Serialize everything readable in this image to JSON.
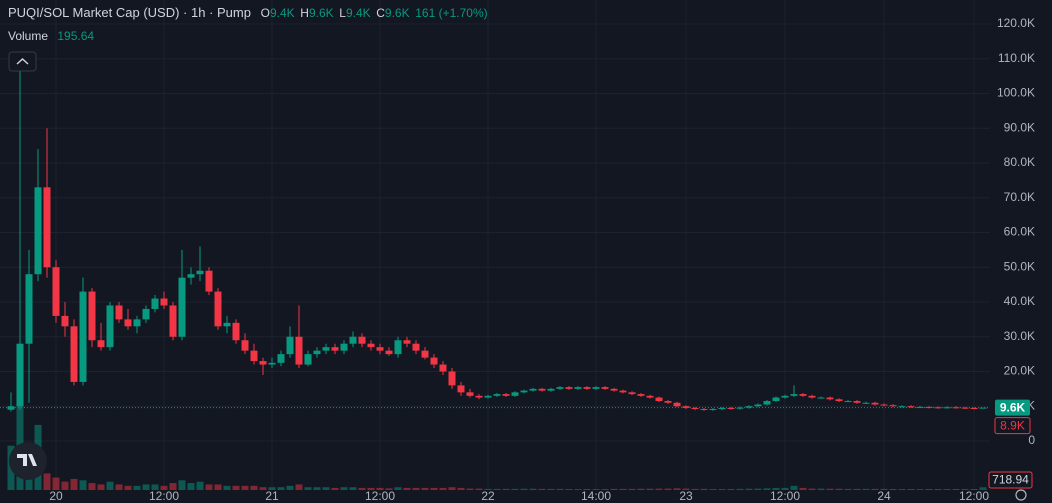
{
  "header": {
    "title": "PUQI/SOL Market Cap (USD) · 1h · Pump",
    "ohlc": [
      {
        "key": "O",
        "value": "9.4K"
      },
      {
        "key": "H",
        "value": "9.6K"
      },
      {
        "key": "L",
        "value": "9.4K"
      },
      {
        "key": "C",
        "value": "9.6K"
      }
    ],
    "change": "161 (+1.70%)",
    "volume_name": "Volume",
    "volume_value": "195.64"
  },
  "chart_data": {
    "type": "candlestick",
    "up_color": "#089981",
    "down_color": "#f23645",
    "grid": true,
    "categories": [
      null,
      null,
      null,
      null,
      null,
      "20",
      null,
      null,
      null,
      null,
      null,
      null,
      null,
      null,
      null,
      null,
      null,
      "12:00",
      null,
      null,
      null,
      null,
      null,
      null,
      null,
      null,
      null,
      null,
      null,
      "21",
      null,
      null,
      null,
      null,
      null,
      null,
      null,
      null,
      null,
      null,
      null,
      "12:00",
      null,
      null,
      null,
      null,
      null,
      null,
      null,
      null,
      null,
      null,
      null,
      "22",
      null,
      null,
      null,
      null,
      null,
      null,
      null,
      null,
      null,
      null,
      null,
      "14:00",
      null,
      null,
      null,
      null,
      null,
      null,
      null,
      null,
      null,
      "23",
      null,
      null,
      null,
      null,
      null,
      null,
      null,
      null,
      null,
      null,
      "12:00",
      null,
      null,
      null,
      null,
      null,
      null,
      null,
      null,
      null,
      null,
      "24",
      null,
      null,
      null,
      null,
      null,
      null,
      null,
      null,
      null,
      "12:00",
      null
    ],
    "open": [
      9000,
      10000,
      28000,
      48000,
      73000,
      50000,
      36000,
      33000,
      17000,
      43000,
      29000,
      27000,
      39000,
      35000,
      33000,
      35000,
      38000,
      41000,
      39000,
      30000,
      47000,
      48000,
      49000,
      43000,
      33000,
      34000,
      29000,
      26000,
      23000,
      22000,
      22500,
      25000,
      30000,
      22000,
      25000,
      26000,
      27000,
      26000,
      28000,
      30000,
      28000,
      27000,
      26000,
      25000,
      29000,
      28000,
      26000,
      24000,
      22000,
      20000,
      16000,
      14000,
      13000,
      12500,
      13000,
      13500,
      13000,
      14000,
      14500,
      15000,
      14500,
      15000,
      15500,
      15000,
      15500,
      15000,
      15500,
      15000,
      14500,
      14000,
      13500,
      13000,
      12500,
      11500,
      11000,
      10000,
      9500,
      9200,
      9000,
      9200,
      9500,
      9300,
      9600,
      10000,
      10500,
      11500,
      12500,
      13000,
      13500,
      13000,
      12500,
      12500,
      12000,
      11500,
      11500,
      11000,
      11000,
      10500,
      10300,
      10000,
      10000,
      9800,
      9800,
      9700,
      9600,
      9700,
      9600,
      9500,
      9400
    ],
    "high": [
      14000,
      107000,
      55000,
      84000,
      90000,
      52000,
      40000,
      35000,
      47000,
      44000,
      34000,
      40000,
      40000,
      38000,
      36000,
      39000,
      42000,
      43000,
      40000,
      55000,
      50000,
      56000,
      50000,
      44000,
      36000,
      35000,
      31000,
      28000,
      24000,
      24000,
      26000,
      33000,
      39000,
      26000,
      27000,
      28000,
      28000,
      29000,
      31500,
      31000,
      29000,
      28000,
      27000,
      30000,
      30000,
      29000,
      27000,
      25000,
      23000,
      21000,
      17000,
      15000,
      13500,
      13300,
      13800,
      13800,
      14300,
      14800,
      15300,
      15300,
      15300,
      15800,
      15800,
      15800,
      15800,
      15800,
      15800,
      15300,
      14800,
      14300,
      13800,
      13300,
      12800,
      11800,
      11300,
      10300,
      9800,
      9500,
      9500,
      9800,
      9800,
      9900,
      10300,
      10800,
      11800,
      12800,
      13300,
      16000,
      13800,
      13300,
      12800,
      12800,
      12300,
      11800,
      11800,
      11300,
      11300,
      10800,
      10600,
      10300,
      10300,
      10100,
      10000,
      9900,
      10000,
      10000,
      9800,
      9700,
      9600
    ],
    "low": [
      8500,
      9000,
      11000,
      46000,
      47000,
      34000,
      30000,
      16000,
      16000,
      27000,
      26000,
      26000,
      34000,
      32000,
      31000,
      34000,
      37000,
      38000,
      29000,
      29000,
      45000,
      46000,
      42000,
      32000,
      31000,
      28000,
      25000,
      22000,
      19000,
      21000,
      21500,
      24000,
      21000,
      21500,
      24000,
      25000,
      25000,
      25000,
      27000,
      27000,
      26000,
      25000,
      24500,
      24000,
      27000,
      25000,
      23500,
      21000,
      19000,
      15000,
      13000,
      12500,
      12000,
      12200,
      12700,
      12700,
      12700,
      13700,
      14200,
      14200,
      14200,
      14700,
      14700,
      14700,
      14700,
      14700,
      14700,
      14200,
      13700,
      13200,
      12700,
      12200,
      11200,
      10700,
      9700,
      9200,
      8900,
      8700,
      8700,
      8900,
      9000,
      9000,
      9300,
      9700,
      10200,
      11200,
      12200,
      12700,
      12700,
      12200,
      12200,
      11700,
      11200,
      11200,
      10700,
      10700,
      10200,
      10000,
      9700,
      9700,
      9500,
      9500,
      9400,
      9300,
      9300,
      9300,
      9200,
      9100,
      9400
    ],
    "close": [
      10000,
      28000,
      48000,
      73000,
      50000,
      36000,
      33000,
      17000,
      43000,
      29000,
      27000,
      39000,
      35000,
      33000,
      35000,
      38000,
      41000,
      39000,
      30000,
      47000,
      48000,
      49000,
      43000,
      33000,
      34000,
      29000,
      26000,
      23000,
      22000,
      22500,
      25000,
      30000,
      22000,
      25000,
      26000,
      27000,
      26000,
      28000,
      30000,
      28000,
      27000,
      26000,
      25000,
      29000,
      28000,
      26000,
      24000,
      22000,
      20000,
      16000,
      14000,
      13000,
      12500,
      13000,
      13500,
      13000,
      14000,
      14500,
      15000,
      14500,
      15000,
      15500,
      15000,
      15500,
      15000,
      15500,
      15000,
      14500,
      14000,
      13500,
      13000,
      12500,
      11500,
      11000,
      10000,
      9500,
      9200,
      9000,
      9200,
      9500,
      9300,
      9600,
      10000,
      10500,
      11500,
      12500,
      13000,
      13500,
      13000,
      12500,
      12500,
      12000,
      11500,
      11500,
      11000,
      11000,
      10500,
      10300,
      10000,
      10000,
      9800,
      9800,
      9700,
      9600,
      9700,
      9600,
      9500,
      9400,
      9600
    ],
    "volume": [
      3200,
      6500,
      2000,
      4700,
      1200,
      900,
      600,
      800,
      700,
      500,
      400,
      600,
      400,
      300,
      300,
      400,
      400,
      300,
      500,
      700,
      500,
      600,
      400,
      400,
      300,
      300,
      300,
      300,
      200,
      200,
      200,
      300,
      400,
      200,
      200,
      200,
      150,
      200,
      200,
      150,
      150,
      150,
      120,
      200,
      150,
      150,
      150,
      150,
      150,
      200,
      150,
      100,
      100,
      80,
      80,
      80,
      80,
      90,
      90,
      80,
      80,
      80,
      70,
      70,
      70,
      70,
      70,
      80,
      80,
      80,
      90,
      90,
      100,
      100,
      120,
      100,
      80,
      80,
      70,
      70,
      70,
      80,
      90,
      100,
      120,
      150,
      150,
      300,
      150,
      100,
      100,
      90,
      90,
      80,
      80,
      80,
      80,
      80,
      70,
      70,
      70,
      70,
      70,
      70,
      70,
      70,
      70,
      70,
      195.64
    ],
    "volume_ylim": [
      0,
      7000
    ],
    "ylim": [
      0,
      120000
    ],
    "yticks": [
      0,
      {
        "value": 10000,
        "label": "10.0K"
      },
      {
        "value": 20000,
        "label": "20.0K"
      },
      {
        "value": 30000,
        "label": "30.0K"
      },
      {
        "value": 40000,
        "label": "40.0K"
      },
      {
        "value": 50000,
        "label": "50.0K"
      },
      {
        "value": 60000,
        "label": "60.0K"
      },
      {
        "value": 70000,
        "label": "70.0K"
      },
      {
        "value": 80000,
        "label": "80.0K"
      },
      {
        "value": 90000,
        "label": "90.0K"
      },
      {
        "value": 100000,
        "label": "100.0K"
      },
      {
        "value": 110000,
        "label": "110.0K"
      },
      {
        "value": 120000,
        "label": "120.0K"
      }
    ],
    "last_price": {
      "value": 9600,
      "label": "9.6K"
    },
    "low_price": {
      "value": 8900,
      "label": "8.9K"
    },
    "volume_marker": 718.94
  }
}
